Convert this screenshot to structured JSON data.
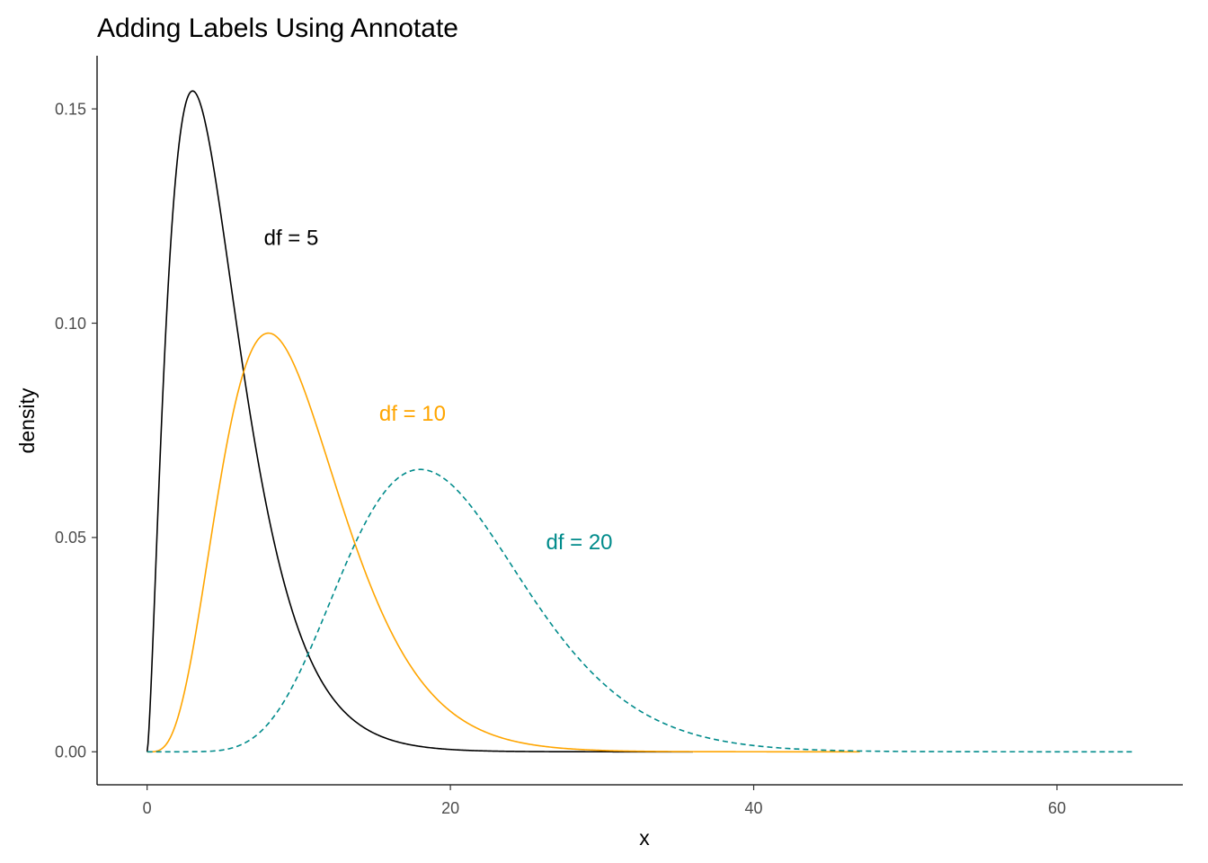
{
  "chart_data": {
    "type": "line",
    "title": "Adding Labels Using Annotate",
    "xlabel": "x",
    "ylabel": "density",
    "xlim": [
      -3.3,
      68.3
    ],
    "ylim": [
      -0.0077,
      0.1624
    ],
    "x_ticks": [
      0,
      20,
      40,
      60
    ],
    "x_tick_labels": [
      "0",
      "20",
      "40",
      "60"
    ],
    "y_ticks": [
      0,
      0.05,
      0.1,
      0.15
    ],
    "y_tick_labels": [
      "0.00",
      "0.05",
      "0.10",
      "0.15"
    ],
    "grid": false,
    "legend": "none",
    "series": [
      {
        "df": 5,
        "x_range": [
          0,
          36
        ],
        "color": "#000000",
        "dashed": false
      },
      {
        "df": 10,
        "x_range": [
          0,
          47
        ],
        "color": "#FFA500",
        "dashed": false
      },
      {
        "df": 20,
        "x_range": [
          0,
          65
        ],
        "color": "#008B8B",
        "dashed": true
      }
    ],
    "annotations": [
      {
        "text": "df = 5",
        "x": 9.5,
        "y": 0.12,
        "color": "#000000"
      },
      {
        "text": "df = 10",
        "x": 17.5,
        "y": 0.079,
        "color": "#FFA500"
      },
      {
        "text": "df = 20",
        "x": 28.5,
        "y": 0.049,
        "color": "#008B8B"
      }
    ]
  }
}
